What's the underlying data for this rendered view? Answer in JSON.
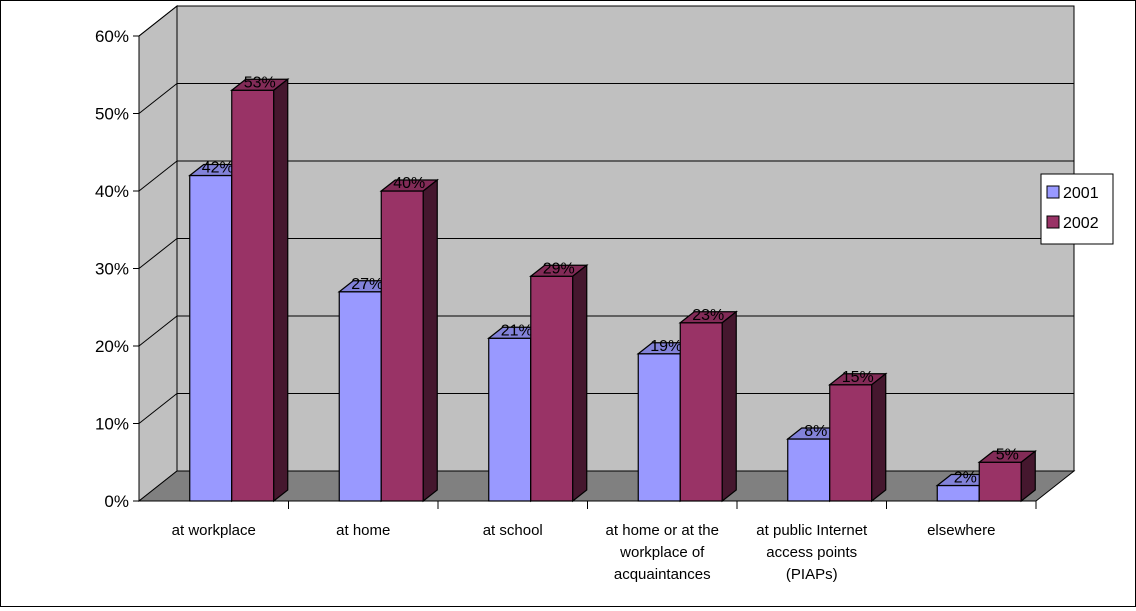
{
  "chart_data": {
    "type": "bar",
    "categories": [
      [
        "at workplace"
      ],
      [
        "at home"
      ],
      [
        "at school"
      ],
      [
        "at home or at the",
        "workplace of",
        "acquaintances"
      ],
      [
        "at public Internet",
        "access points",
        "(PIAPs)"
      ],
      [
        "elsewhere"
      ]
    ],
    "series": [
      {
        "name": "2001",
        "values": [
          42,
          27,
          21,
          19,
          8,
          2
        ],
        "labels": [
          "42%",
          "27%",
          "21%",
          "19%",
          "8%",
          "2%"
        ],
        "color": "#9999ff"
      },
      {
        "name": "2002",
        "values": [
          53,
          40,
          29,
          23,
          15,
          5
        ],
        "labels": [
          "53%",
          "40%",
          "29%",
          "23%",
          "15%",
          "5%"
        ],
        "color": "#993366"
      }
    ],
    "ylim": [
      0,
      60
    ],
    "yticks": [
      "0%",
      "10%",
      "20%",
      "30%",
      "40%",
      "50%",
      "60%"
    ],
    "grid": true,
    "legend_position": "right",
    "wall_color": "#c0c0c0",
    "floor_color": "#808080",
    "title": "",
    "xlabel": "",
    "ylabel": ""
  }
}
